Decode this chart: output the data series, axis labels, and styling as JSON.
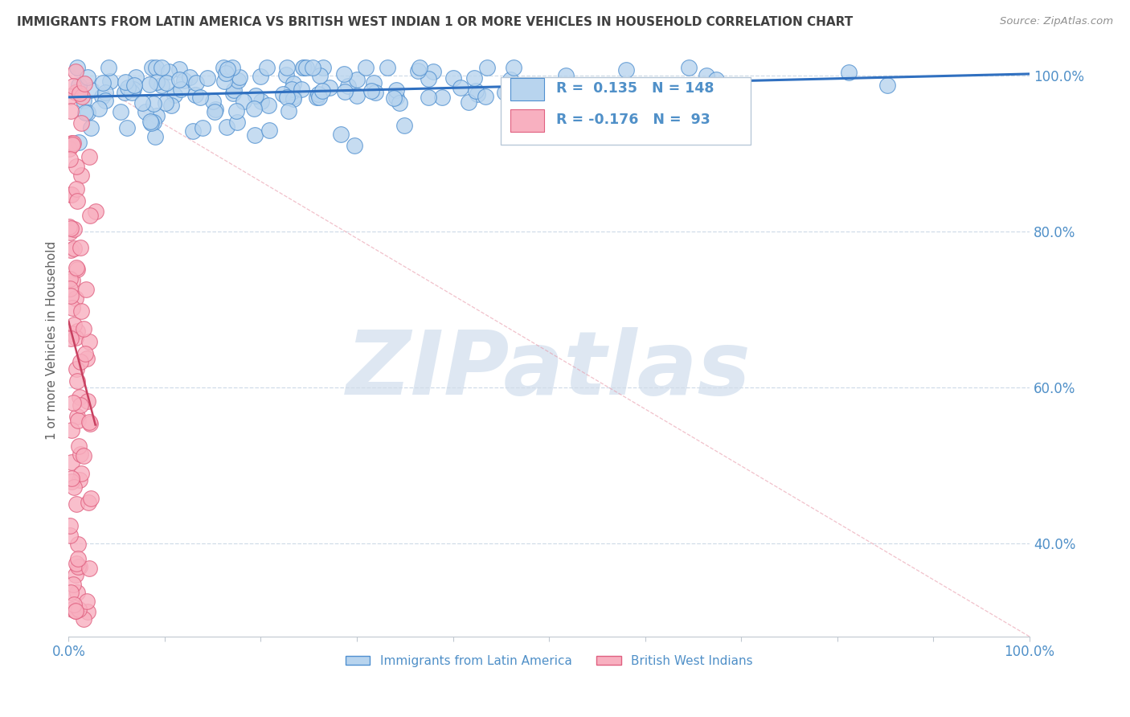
{
  "title": "IMMIGRANTS FROM LATIN AMERICA VS BRITISH WEST INDIAN 1 OR MORE VEHICLES IN HOUSEHOLD CORRELATION CHART",
  "source": "Source: ZipAtlas.com",
  "ylabel": "1 or more Vehicles in Household",
  "r_blue": 0.135,
  "n_blue": 148,
  "r_pink": -0.176,
  "n_pink": 93,
  "blue_color": "#b8d4ee",
  "pink_color": "#f8b0c0",
  "blue_edge": "#5090d0",
  "pink_edge": "#e06080",
  "trend_blue_color": "#3070c0",
  "trend_pink_color": "#c84060",
  "diag_color": "#e898a8",
  "watermark": "ZIPatlas",
  "watermark_color": "#c8d8ea",
  "legend_label_blue": "Immigrants from Latin America",
  "legend_label_pink": "British West Indians",
  "title_color": "#404040",
  "axis_tick_color": "#5090c8",
  "grid_color": "#d0dce8",
  "xlim": [
    0.0,
    1.0
  ],
  "ylim": [
    0.28,
    1.04
  ],
  "yticks": [
    0.4,
    0.6,
    0.8,
    1.0
  ],
  "xtick_count": 11
}
